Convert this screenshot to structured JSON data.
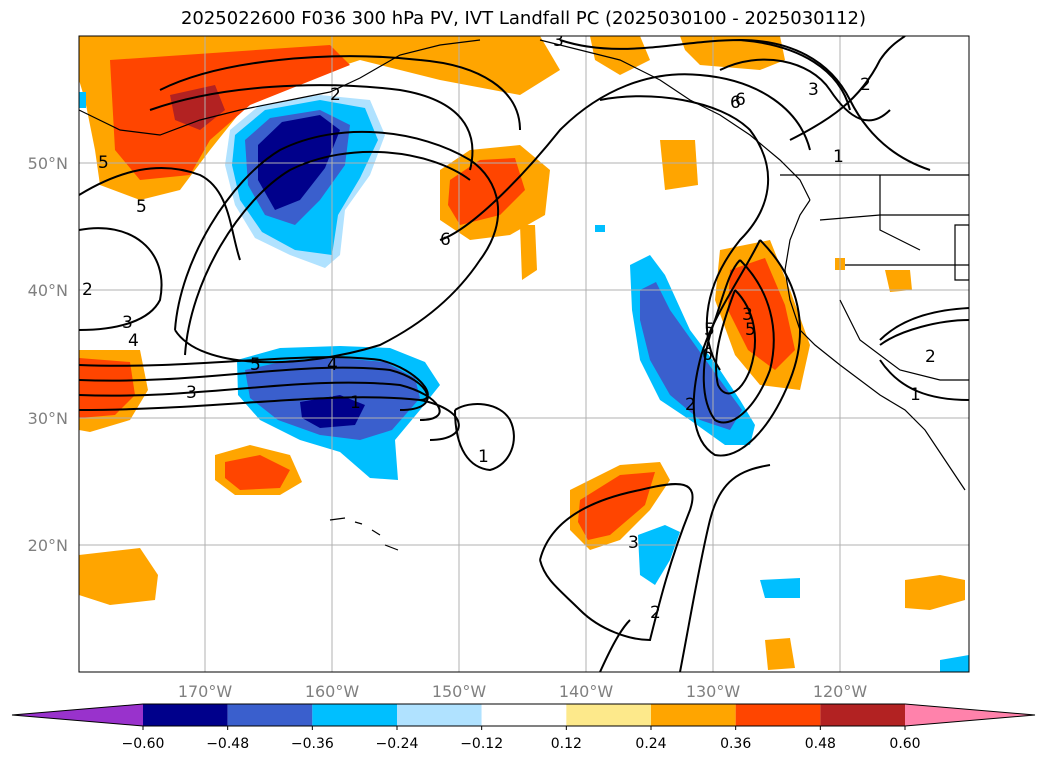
{
  "title": "2025022600 F036 300 hPa PV, IVT Landfall PC (2025030100 - 2025030112)",
  "lat_ticks": [
    "50°N",
    "40°N",
    "30°N",
    "20°N"
  ],
  "lon_ticks": [
    "170°W",
    "160°W",
    "150°W",
    "140°W",
    "130°W",
    "120°W"
  ],
  "colorbar": {
    "levels": [
      "−0.60",
      "−0.48",
      "−0.36",
      "−0.24",
      "−0.12",
      "0.12",
      "0.24",
      "0.36",
      "0.48",
      "0.60"
    ],
    "colors": [
      "#9932cc",
      "#00008b",
      "#3a5fcd",
      "#00bfff",
      "#b0e2ff",
      "#ffffff",
      "#fde98b",
      "#ffa500",
      "#ff4500",
      "#b22222",
      "#ff82ab"
    ]
  },
  "contour_labels": [
    "5",
    "5",
    "2",
    "2",
    "3",
    "4",
    "6",
    "6",
    "3",
    "5",
    "4",
    "1",
    "3",
    "5",
    "6",
    "3",
    "2",
    "1",
    "2",
    "1",
    "2",
    "6",
    "5",
    "3",
    "1",
    "3",
    "2"
  ],
  "colors": {
    "land_outline": "#000000",
    "grid": "#b0b0b0",
    "contour": "#000000"
  }
}
